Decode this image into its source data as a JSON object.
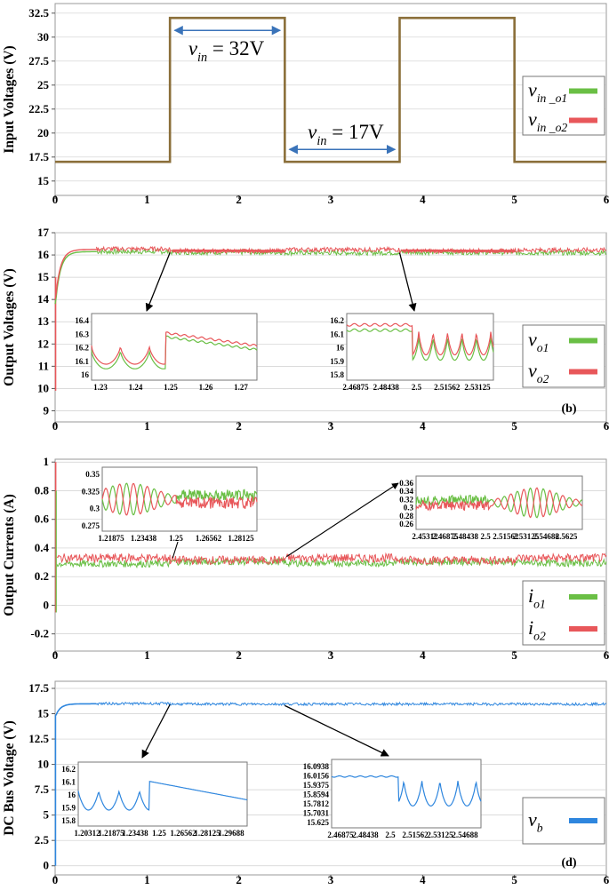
{
  "colors": {
    "input": "#8b6f3a",
    "o1": "#6abf45",
    "o2": "#e8575a",
    "bus": "#2e86de",
    "arrow_blue": "#3a73b9",
    "frame": "#9a9a9a",
    "grid": "#cfcfcf",
    "text": "#000000"
  },
  "chart_data": [
    {
      "type": "line",
      "id": "a",
      "ylabel": "Input Voltages (V)",
      "xlim": [
        0,
        6
      ],
      "ylim": [
        13.5,
        33.5
      ],
      "x_ticks": [
        "0",
        "1",
        "2",
        "3",
        "4",
        "5",
        "6"
      ],
      "y_ticks": [
        "15",
        "17.5",
        "20",
        "22.5",
        "25",
        "27.5",
        "30",
        "32.5"
      ],
      "y_tick_values": [
        15,
        17.5,
        20,
        22.5,
        25,
        27.5,
        30,
        32.5
      ],
      "series": [
        {
          "name": "v_in_o1",
          "x": [
            0,
            1.25,
            1.25,
            2.5,
            2.5,
            3.75,
            3.75,
            5,
            5,
            6
          ],
          "values": [
            17,
            17,
            32,
            32,
            17,
            17,
            32,
            32,
            17,
            17
          ]
        },
        {
          "name": "v_in_o2",
          "x": [
            0,
            1.25,
            1.25,
            2.5,
            2.5,
            3.75,
            3.75,
            5,
            5,
            6
          ],
          "values": [
            17,
            17,
            32,
            32,
            17,
            17,
            32,
            32,
            17,
            17
          ]
        }
      ],
      "annotations": [
        {
          "v": "v",
          "sub": "in",
          "eq": " = 32V"
        },
        {
          "v": "v",
          "sub": "in",
          "eq": " = 17V"
        }
      ],
      "legend": [
        {
          "v": "v",
          "sub": "in _o1"
        },
        {
          "v": "v",
          "sub": "in _o2"
        }
      ]
    },
    {
      "type": "line",
      "id": "b",
      "label": "(b)",
      "ylabel": "Output Voltages (V)",
      "xlim": [
        0,
        6
      ],
      "ylim": [
        8.5,
        17
      ],
      "x_ticks": [
        "0",
        "1",
        "2",
        "3",
        "4",
        "5",
        "6"
      ],
      "y_ticks": [
        "9",
        "10",
        "11",
        "12",
        "13",
        "14",
        "15",
        "16",
        "17"
      ],
      "y_tick_values": [
        9,
        10,
        11,
        12,
        13,
        14,
        15,
        16,
        17
      ],
      "series": [
        {
          "name": "v_o1",
          "steady": [
            16.15,
            16.12,
            16.1,
            16.12
          ]
        },
        {
          "name": "v_o2",
          "steady": [
            16.25,
            16.2,
            16.25,
            16.2
          ]
        }
      ],
      "insets": [
        {
          "x_ticks": [
            "1.23",
            "1.24",
            "1.25",
            "1.26",
            "1.27"
          ],
          "y_ticks": [
            "16",
            "16.1",
            "16.2",
            "16.3",
            "16.4"
          ]
        },
        {
          "x_ticks": [
            "2.46875",
            "2.48438",
            "2.5",
            "2.51562",
            "2.53125"
          ],
          "y_ticks": [
            "15.8",
            "15.9",
            "16",
            "16.1",
            "16.2"
          ]
        }
      ],
      "legend": [
        {
          "v": "v",
          "sub": "o1"
        },
        {
          "v": "v",
          "sub": "o2"
        }
      ]
    },
    {
      "type": "line",
      "id": "c",
      "ylabel": "Output Currents (A)",
      "xlim": [
        0,
        6
      ],
      "ylim": [
        -0.32,
        1.02
      ],
      "x_ticks": [
        "0",
        "1",
        "2",
        "3",
        "4",
        "5",
        "6"
      ],
      "y_ticks": [
        "-0.2",
        "0",
        "0.2",
        "0.4",
        "0.6",
        "0.8",
        "1"
      ],
      "y_tick_values": [
        -0.2,
        0,
        0.2,
        0.4,
        0.6,
        0.8,
        1
      ],
      "series": [
        {
          "name": "i_o1",
          "steady": [
            0.29,
            0.31,
            0.29,
            0.31
          ]
        },
        {
          "name": "i_o2",
          "steady": [
            0.33,
            0.31,
            0.33,
            0.31
          ]
        }
      ],
      "insets": [
        {
          "x_ticks": [
            "1.21875",
            "1.23438",
            "1.25",
            "1.26562",
            "1.28125"
          ],
          "y_ticks": [
            "0.275",
            "0.3",
            "0.325",
            "0.35"
          ]
        },
        {
          "x_ticks": [
            "2.45312",
            "2.46875",
            "2.48438",
            "2.5",
            "2.51562",
            "2.53125",
            "2.54688",
            "2.5625"
          ],
          "y_ticks": [
            "0.26",
            "0.28",
            "0.3",
            "0.32",
            "0.34",
            "0.36"
          ]
        }
      ],
      "legend": [
        {
          "v": "i",
          "sub": "o1"
        },
        {
          "v": "i",
          "sub": "o2"
        }
      ]
    },
    {
      "type": "line",
      "id": "d",
      "label": "(d)",
      "ylabel": "DC Bus Voltage (V)",
      "xlim": [
        0,
        6
      ],
      "ylim": [
        -0.9,
        18.2
      ],
      "x_ticks": [
        "0",
        "1",
        "2",
        "3",
        "4",
        "5",
        "6"
      ],
      "y_ticks": [
        "0",
        "2.5",
        "5",
        "7.5",
        "10",
        "12.5",
        "15",
        "17.5"
      ],
      "y_tick_values": [
        0,
        2.5,
        5,
        7.5,
        10,
        12.5,
        15,
        17.5
      ],
      "series": [
        {
          "name": "v_b",
          "steady": [
            16.0,
            15.95,
            16.0,
            15.95
          ]
        }
      ],
      "insets": [
        {
          "x_ticks": [
            "1.20312",
            "1.21875",
            "1.23438",
            "1.25",
            "1.26562",
            "1.28125",
            "1.29688"
          ],
          "y_ticks": [
            "15.8",
            "15.9",
            "16",
            "16.1",
            "16.2"
          ]
        },
        {
          "x_ticks": [
            "2.46875",
            "2.48438",
            "2.5",
            "2.51562",
            "2.53125",
            "2.54688"
          ],
          "y_ticks": [
            "15.625",
            "15.7031",
            "15.7812",
            "15.8594",
            "15.9375",
            "16.0156",
            "16.0938"
          ]
        }
      ],
      "legend": [
        {
          "v": "v",
          "sub": "b"
        }
      ]
    }
  ]
}
